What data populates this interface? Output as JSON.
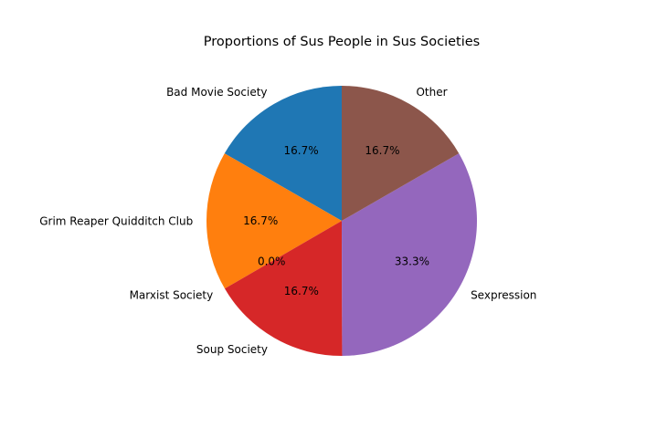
{
  "chart_data": {
    "type": "pie",
    "title": "Proportions of Sus People in Sus Societies",
    "start_angle_deg": 90,
    "direction": "counterclockwise",
    "slices": [
      {
        "label": "Bad Movie Society",
        "value": 16.7,
        "pct_label": "16.7%",
        "color": "#1f77b4"
      },
      {
        "label": "Grim Reaper Quidditch Club",
        "value": 16.7,
        "pct_label": "16.7%",
        "color": "#ff7f0e"
      },
      {
        "label": "Marxist Society",
        "value": 0.0,
        "pct_label": "0.0%",
        "color": "#2ca02c"
      },
      {
        "label": "Soup Society",
        "value": 16.7,
        "pct_label": "16.7%",
        "color": "#d62728"
      },
      {
        "label": "Sexpression",
        "value": 33.3,
        "pct_label": "33.3%",
        "color": "#9467bd"
      },
      {
        "label": "Other",
        "value": 16.7,
        "pct_label": "16.7%",
        "color": "#8c564b"
      }
    ]
  }
}
